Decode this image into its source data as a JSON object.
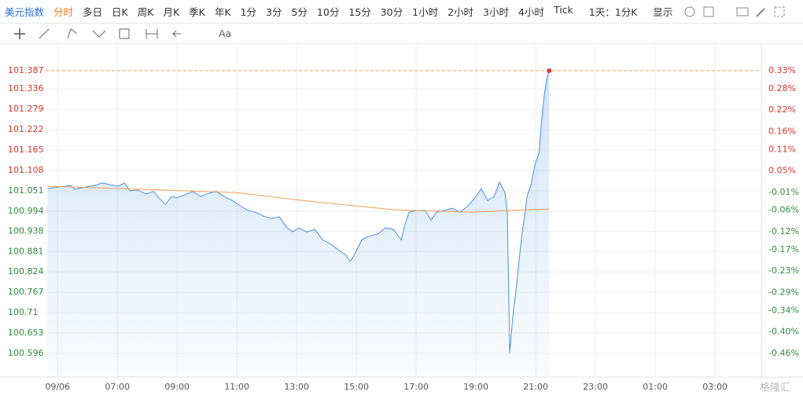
{
  "toolbar": {
    "symbol": "美元指数",
    "periods": [
      "分时",
      "多日",
      "日K",
      "周K",
      "月K",
      "季K",
      "年K",
      "1分",
      "3分",
      "5分",
      "10分",
      "15分",
      "30分",
      "1小时",
      "2小时",
      "3小时",
      "4小时",
      "Tick"
    ],
    "interval": "1天：1分K",
    "display": "显示",
    "text_tool": "Aa"
  },
  "watermark": "格隆汇",
  "chart_data": {
    "type": "line",
    "xlim": [
      4.6,
      28.55
    ],
    "xticks": [
      {
        "value": 5,
        "label": "09/06"
      },
      {
        "value": 7,
        "label": "07:00"
      },
      {
        "value": 9,
        "label": "09:00"
      },
      {
        "value": 11,
        "label": "11:00"
      },
      {
        "value": 13,
        "label": "13:00"
      },
      {
        "value": 15,
        "label": "15:00"
      },
      {
        "value": 17,
        "label": "17:00"
      },
      {
        "value": 19,
        "label": "19:00"
      },
      {
        "value": 21,
        "label": "21:00"
      },
      {
        "value": 23,
        "label": "23:00"
      },
      {
        "value": 25,
        "label": "01:00"
      },
      {
        "value": 27,
        "label": "03:00"
      }
    ],
    "ylim": [
      100.53,
      101.409
    ],
    "yticks": [
      101.387,
      101.336,
      101.279,
      101.222,
      101.165,
      101.108,
      101.051,
      100.994,
      100.938,
      100.881,
      100.824,
      100.767,
      100.71,
      100.653,
      100.596
    ],
    "y2lim": [
      -0.526,
      0.352
    ],
    "y2ticks": [
      {
        "value": 0.33,
        "label": "0.33%"
      },
      {
        "value": 0.28,
        "label": "0.28%"
      },
      {
        "value": 0.22,
        "label": "0.22%"
      },
      {
        "value": 0.16,
        "label": "0.16%"
      },
      {
        "value": 0.11,
        "label": "0.11%"
      },
      {
        "value": 0.05,
        "label": "0.05%"
      },
      {
        "value": -0.01,
        "label": "-0.01%"
      },
      {
        "value": -0.06,
        "label": "-0.06%"
      },
      {
        "value": -0.12,
        "label": "-0.12%"
      },
      {
        "value": -0.17,
        "label": "-0.17%"
      },
      {
        "value": -0.23,
        "label": "-0.23%"
      },
      {
        "value": -0.29,
        "label": "-0.29%"
      },
      {
        "value": -0.34,
        "label": "-0.34%"
      },
      {
        "value": -0.4,
        "label": "-0.40%"
      },
      {
        "value": -0.46,
        "label": "-0.46%"
      }
    ],
    "grid": true,
    "series": [
      {
        "color": "#4a90e2",
        "area": true,
        "x": [
          4.66,
          5.05,
          5.45,
          5.58,
          5.97,
          6.24,
          6.5,
          6.76,
          7.03,
          7.24,
          7.42,
          7.68,
          7.95,
          8.21,
          8.47,
          8.61,
          8.82,
          9.0,
          9.26,
          9.53,
          9.79,
          10.05,
          10.32,
          10.58,
          10.84,
          11.11,
          11.37,
          11.63,
          11.89,
          12.16,
          12.42,
          12.68,
          12.87,
          13.08,
          13.34,
          13.61,
          13.87,
          14.13,
          14.39,
          14.66,
          14.79,
          14.92,
          15.18,
          15.45,
          15.71,
          15.97,
          16.24,
          16.5,
          16.63,
          16.76,
          17.03,
          17.29,
          17.5,
          17.68,
          17.95,
          18.21,
          18.47,
          18.74,
          19.0,
          19.18,
          19.39,
          19.61,
          19.79,
          19.97,
          20.05,
          20.13,
          20.24,
          20.34,
          20.45,
          20.53,
          20.61,
          20.71,
          20.84,
          20.97,
          21.11,
          21.18,
          21.29,
          21.37,
          21.45
        ],
        "values": [
          101.057,
          101.062,
          101.066,
          101.055,
          101.062,
          101.066,
          101.073,
          101.068,
          101.064,
          101.073,
          101.051,
          101.053,
          101.042,
          101.049,
          101.024,
          101.013,
          101.035,
          101.031,
          101.04,
          101.049,
          101.035,
          101.044,
          101.049,
          101.035,
          101.024,
          101.009,
          100.996,
          100.991,
          100.98,
          100.974,
          100.978,
          100.947,
          100.936,
          100.947,
          100.936,
          100.943,
          100.914,
          100.903,
          100.886,
          100.87,
          100.853,
          100.87,
          100.914,
          100.925,
          100.93,
          100.947,
          100.943,
          100.914,
          100.958,
          100.991,
          100.996,
          100.996,
          100.969,
          100.991,
          100.996,
          101.002,
          100.991,
          101.009,
          101.035,
          101.057,
          101.024,
          101.035,
          101.075,
          101.046,
          100.991,
          100.598,
          100.706,
          100.772,
          100.86,
          100.925,
          100.969,
          101.035,
          101.068,
          101.123,
          101.156,
          101.233,
          101.321,
          101.365,
          101.387
        ]
      },
      {
        "color": "#f0a050",
        "area": false,
        "x": [
          4.66,
          10.97,
          13.61,
          16.24,
          18.87,
          20.18,
          21.45
        ],
        "values": [
          101.064,
          101.046,
          101.02,
          100.998,
          100.991,
          100.996,
          101.0
        ]
      }
    ]
  }
}
